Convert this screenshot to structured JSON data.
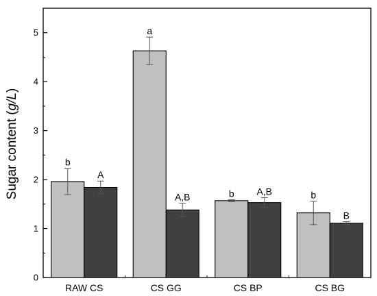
{
  "chart_data": {
    "type": "bar",
    "categories": [
      "RAW CS",
      "CS GG",
      "CS BP",
      "CS BG"
    ],
    "series": [
      {
        "color": "#c0c0c0",
        "values": [
          1.96,
          4.63,
          1.57,
          1.32
        ],
        "errors": [
          0.27,
          0.28,
          0.02,
          0.24
        ],
        "labels": [
          "b",
          "a",
          "b",
          "b"
        ]
      },
      {
        "color": "#404040",
        "values": [
          1.84,
          1.38,
          1.53,
          1.11
        ],
        "errors": [
          0.13,
          0.14,
          0.1,
          0.03
        ],
        "labels": [
          "A",
          "A,B",
          "A,B",
          "B"
        ]
      }
    ],
    "ylabel": {
      "prefix": "Sugar content (",
      "unit": "g/L",
      "suffix": ")"
    },
    "ylim": [
      0,
      5.5
    ],
    "yticks": [
      "0",
      "1",
      "2",
      "3",
      "4",
      "5"
    ],
    "xlabel": "",
    "title": "",
    "grid": false
  }
}
